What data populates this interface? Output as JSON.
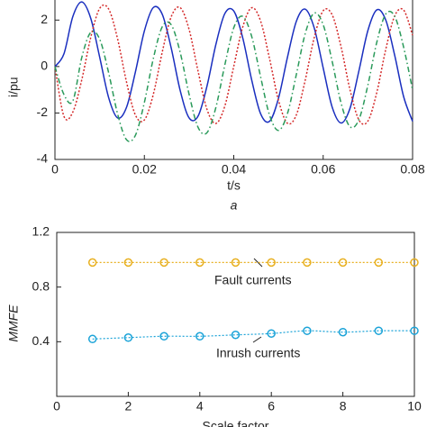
{
  "chart_data": [
    {
      "type": "line",
      "xlabel": "t/s",
      "ylabel": "i/pu",
      "caption": "a",
      "x": [
        0,
        0.002,
        0.004,
        0.006,
        0.008,
        0.01,
        0.012,
        0.014,
        0.016,
        0.018,
        0.02,
        0.022,
        0.024,
        0.026,
        0.028,
        0.03,
        0.032,
        0.034,
        0.036,
        0.038,
        0.04,
        0.042,
        0.044,
        0.046,
        0.048,
        0.05,
        0.052,
        0.054,
        0.056,
        0.058,
        0.06,
        0.062,
        0.064,
        0.066,
        0.068,
        0.07,
        0.072,
        0.074,
        0.076,
        0.078,
        0.08
      ],
      "xlim": [
        0,
        0.08
      ],
      "xticks": [
        0,
        0.02,
        0.04,
        0.06,
        0.08
      ],
      "ylim": [
        -4,
        3
      ],
      "yticks": [
        -4,
        -2,
        0,
        2
      ],
      "series": [
        {
          "color": "#1a2fbf",
          "linestyle": "solid",
          "values": [
            0,
            0.54,
            2.15,
            2.78,
            2.08,
            0.41,
            -1.33,
            -2.21,
            -1.76,
            -0.23,
            1.53,
            2.54,
            2.25,
            0.8,
            -1.02,
            -2.21,
            -2.14,
            -0.85,
            0.95,
            2.28,
            2.39,
            1.24,
            -0.57,
            -2.03,
            -2.36,
            -1.37,
            0.39,
            1.95,
            2.47,
            1.66,
            -0.06,
            -1.74,
            -2.43,
            -1.8,
            -0.18,
            1.55,
            2.44,
            2,
            0.48,
            -1.3,
            -2.36
          ]
        },
        {
          "color": "#d42a2a",
          "linestyle": "dotted",
          "values": [
            0,
            -2.14,
            -1.96,
            -0.57,
            1.25,
            2.5,
            2.48,
            1.2,
            -0.66,
            -2.09,
            -2.3,
            -1.2,
            0.62,
            2.14,
            2.54,
            1.6,
            -0.19,
            -1.84,
            -2.45,
            -1.7,
            0.01,
            1.7,
            2.53,
            1.96,
            0.34,
            -1.45,
            -2.44,
            -2.08,
            -0.57,
            1.25,
            2.4,
            2.23,
            0.85,
            -1,
            -2.3,
            -2.35,
            -1.11,
            0.74,
            2.18,
            2.43,
            1.35
          ]
        },
        {
          "color": "#2a9a5a",
          "linestyle": "dashdot",
          "values": [
            0,
            -1.2,
            -1.48,
            0.39,
            1.47,
            1.18,
            -0.26,
            -2.03,
            -3.15,
            -2.96,
            -1.55,
            0.34,
            1.71,
            1.8,
            0.62,
            -1.19,
            -2.61,
            -2.85,
            -1.76,
            0.07,
            1.67,
            2.16,
            1.3,
            -0.44,
            -2.09,
            -2.75,
            -2.03,
            -0.34,
            1.43,
            2.3,
            1.8,
            0.23,
            -1.57,
            -2.59,
            -2.28,
            -0.8,
            1.05,
            2.26,
            2.16,
            0.83,
            -1.01
          ]
        }
      ]
    },
    {
      "type": "line",
      "xlabel": "Scale factor",
      "ylabel": "MMFE",
      "x": [
        1,
        2,
        3,
        4,
        5,
        6,
        7,
        8,
        9,
        10
      ],
      "xlim": [
        0,
        10
      ],
      "xticks": [
        0,
        2,
        4,
        6,
        8,
        10
      ],
      "ylim": [
        0,
        1.2
      ],
      "yticks": [
        0.4,
        0.8,
        1.2
      ],
      "series": [
        {
          "name": "Fault currents",
          "color": "#e8b020",
          "linestyle": "dotted",
          "marker": "circle",
          "values": [
            0.98,
            0.98,
            0.98,
            0.98,
            0.98,
            0.98,
            0.98,
            0.98,
            0.98,
            0.98
          ]
        },
        {
          "name": "Inrush currents",
          "color": "#1ba3d8",
          "linestyle": "dotted",
          "marker": "circle",
          "values": [
            0.42,
            0.43,
            0.44,
            0.44,
            0.45,
            0.46,
            0.48,
            0.47,
            0.48,
            0.48
          ]
        }
      ]
    }
  ]
}
